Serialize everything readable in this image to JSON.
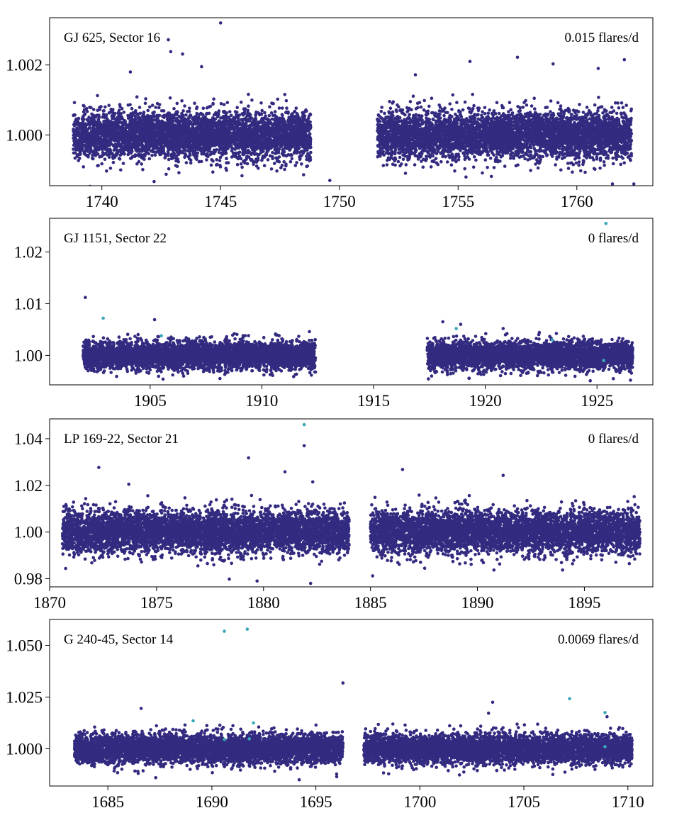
{
  "colors": {
    "normal": "#332b80",
    "flare": "#3aa8b8",
    "axis": "#000000"
  },
  "chart_data": [
    {
      "type": "scatter",
      "title": "GJ 625, Sector 16",
      "annotation": "0.015 flares/d",
      "xlim": [
        1737.8,
        1763.2
      ],
      "ylim": [
        0.99855,
        1.00335
      ],
      "xticks": [
        1740,
        1745,
        1750,
        1755,
        1760
      ],
      "yticks": [
        1.0,
        1.002
      ],
      "ytick_labels": [
        "1.000",
        "1.002"
      ],
      "xtick_labels": [
        "1740",
        "1745",
        "1750",
        "1755",
        "1760"
      ],
      "segments": [
        [
          1738.8,
          1748.8
        ],
        [
          1751.6,
          1762.3
        ]
      ],
      "center": 1.0,
      "noise_sd": 0.00033,
      "outliers_high": [
        [
          1742.8,
          1.00272
        ],
        [
          1742.9,
          1.00238
        ],
        [
          1743.4,
          1.00231
        ],
        [
          1745.0,
          1.0032
        ],
        [
          1757.5,
          1.00222
        ],
        [
          1755.5,
          1.0021
        ],
        [
          1762.0,
          1.00215
        ],
        [
          1759.0,
          1.00203
        ],
        [
          1744.2,
          1.00195
        ],
        [
          1753.2,
          1.00172
        ],
        [
          1741.2,
          1.0018
        ],
        [
          1760.9,
          1.0019
        ]
      ],
      "outliers_low": [
        [
          1739.5,
          0.99853
        ],
        [
          1749.6,
          0.9987
        ],
        [
          1761.5,
          0.9986
        ],
        [
          1762.4,
          0.9986
        ],
        [
          1742.2,
          0.99867
        ]
      ],
      "flare_points": []
    },
    {
      "type": "scatter",
      "title": "GJ 1151, Sector 22",
      "annotation": "0 flares/d",
      "xlim": [
        1900.5,
        1927.5
      ],
      "ylim": [
        0.9943,
        1.0265
      ],
      "xticks": [
        1905,
        1910,
        1915,
        1920,
        1925
      ],
      "yticks": [
        1.0,
        1.01,
        1.02
      ],
      "ytick_labels": [
        "1.00",
        "1.01",
        "1.02"
      ],
      "xtick_labels": [
        "1905",
        "1910",
        "1915",
        "1920",
        "1925"
      ],
      "segments": [
        [
          1902.0,
          1912.4
        ],
        [
          1917.4,
          1926.6
        ]
      ],
      "center": 1.0,
      "noise_sd": 0.0013,
      "outliers_high": [
        [
          1902.1,
          1.0112
        ],
        [
          1905.2,
          1.0069
        ],
        [
          1918.1,
          1.0065
        ],
        [
          1918.9,
          1.006
        ],
        [
          1920.8,
          1.0052
        ]
      ],
      "outliers_low": [
        [
          1924.7,
          0.9951
        ],
        [
          1926.5,
          0.9952
        ],
        [
          1906.5,
          0.996
        ]
      ],
      "flare_points": [
        [
          1925.4,
          1.0255
        ],
        [
          1902.9,
          1.0072
        ],
        [
          1918.7,
          1.0052
        ],
        [
          1905.5,
          1.0038
        ],
        [
          1923.0,
          1.003
        ],
        [
          1925.3,
          0.999
        ]
      ]
    },
    {
      "type": "scatter",
      "title": "LP 169-22, Sector 21",
      "annotation": "0 flares/d",
      "xlim": [
        1870.0,
        1898.2
      ],
      "ylim": [
        0.9765,
        1.0485
      ],
      "xticks": [
        1870,
        1875,
        1880,
        1885,
        1890,
        1895
      ],
      "yticks": [
        0.98,
        1.0,
        1.02,
        1.04
      ],
      "ytick_labels": [
        "0.98",
        "1.00",
        "1.02",
        "1.04"
      ],
      "xtick_labels": [
        "1870",
        "1875",
        "1880",
        "1885",
        "1890",
        "1895"
      ],
      "segments": [
        [
          1870.6,
          1884.0
        ],
        [
          1885.0,
          1897.6
        ]
      ],
      "center": 1.0,
      "noise_sd": 0.0045,
      "outliers_high": [
        [
          1881.9,
          1.037
        ],
        [
          1879.3,
          1.0318
        ],
        [
          1872.3,
          1.0277
        ],
        [
          1881.0,
          1.0258
        ],
        [
          1886.5,
          1.0268
        ],
        [
          1891.2,
          1.0243
        ],
        [
          1882.3,
          1.0215
        ],
        [
          1873.7,
          1.0205
        ]
      ],
      "outliers_low": [
        [
          1879.7,
          0.979
        ],
        [
          1882.2,
          0.978
        ],
        [
          1878.4,
          0.9798
        ],
        [
          1885.1,
          0.9812
        ]
      ],
      "flare_points": [
        [
          1881.9,
          1.046
        ]
      ]
    },
    {
      "type": "scatter",
      "title": "G 240-45, Sector 14",
      "annotation": "0.0069 flares/d",
      "xlim": [
        1682.2,
        1711.2
      ],
      "ylim": [
        0.982,
        1.0625
      ],
      "xticks": [
        1685,
        1690,
        1695,
        1700,
        1705,
        1710
      ],
      "yticks": [
        1.0,
        1.025,
        1.05
      ],
      "ytick_labels": [
        "1.000",
        "1.025",
        "1.050"
      ],
      "xtick_labels": [
        "1685",
        "1690",
        "1695",
        "1700",
        "1705",
        "1710"
      ],
      "segments": [
        [
          1683.4,
          1696.3
        ],
        [
          1697.3,
          1710.2
        ]
      ],
      "center": 1.0,
      "noise_sd": 0.0035,
      "outliers_high": [
        [
          1696.3,
          1.0318
        ],
        [
          1703.5,
          1.0225
        ],
        [
          1686.6,
          1.0195
        ],
        [
          1703.3,
          1.0172
        ],
        [
          1709.0,
          1.0155
        ]
      ],
      "outliers_low": [
        [
          1687.3,
          0.986
        ],
        [
          1694.2,
          0.985
        ],
        [
          1696.0,
          0.9865
        ]
      ],
      "flare_points": [
        [
          1690.6,
          1.0568
        ],
        [
          1691.7,
          1.0578
        ],
        [
          1707.2,
          1.0242
        ],
        [
          1708.9,
          1.0175
        ],
        [
          1689.1,
          1.0135
        ],
        [
          1692.0,
          1.0125
        ],
        [
          1690.6,
          1.0045
        ],
        [
          1691.8,
          1.0048
        ],
        [
          1708.9,
          1.001
        ]
      ]
    }
  ]
}
